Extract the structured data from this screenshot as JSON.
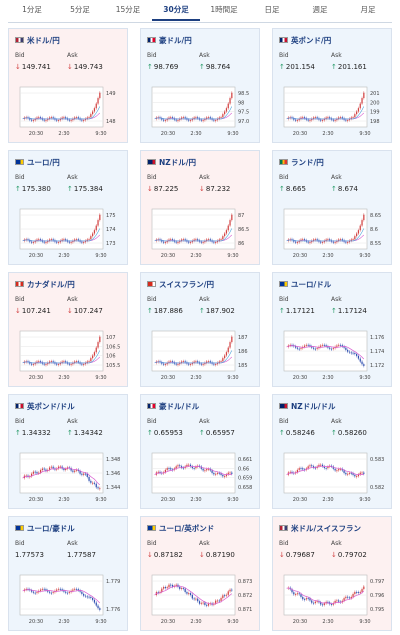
{
  "tabs": [
    {
      "label": "1分足",
      "active": false
    },
    {
      "label": "5分足",
      "active": false
    },
    {
      "label": "15分足",
      "active": false
    },
    {
      "label": "30分足",
      "active": true
    },
    {
      "label": "1時間足",
      "active": false
    },
    {
      "label": "日足",
      "active": false
    },
    {
      "label": "週足",
      "active": false
    },
    {
      "label": "月足",
      "active": false
    }
  ],
  "colors": {
    "up": "#2a9b6b",
    "down": "#d24242",
    "nav": "#1d3f80",
    "line_blue": "#4aa3dc",
    "line_pink": "#d85cd0"
  },
  "cards": [
    {
      "name": "米ドル/円",
      "flag": "US",
      "bid_label": "Bid",
      "ask_label": "Ask",
      "trend": "down",
      "bid": "149.741",
      "ask": "149.743",
      "yticks": [
        "149",
        "148"
      ],
      "xticks": [
        "20:30",
        "2:30",
        "9:30"
      ],
      "shape": "spike-up",
      "chart_type": "candle-spike"
    },
    {
      "name": "豪ドル/円",
      "flag": "AU",
      "bid_label": "Bid",
      "ask_label": "Ask",
      "trend": "up",
      "bid": "98.769",
      "ask": "98.764",
      "yticks": [
        "98.5",
        "98",
        "97.5",
        "97.0"
      ],
      "xticks": [
        "20:30",
        "2:30",
        "9:30"
      ],
      "shape": "spike-up",
      "chart_type": "candle-spike"
    },
    {
      "name": "英ポンド/円",
      "flag": "UK",
      "bid_label": "Bid",
      "ask_label": "Ask",
      "trend": "up",
      "bid": "201.154",
      "ask": "201.161",
      "yticks": [
        "201",
        "200",
        "199",
        "198"
      ],
      "xticks": [
        "20:30",
        "2:30",
        "9:30"
      ],
      "shape": "spike-up",
      "chart_type": "candle-spike"
    },
    {
      "name": "ユーロ/円",
      "flag": "EU",
      "bid_label": "Bid",
      "ask_label": "Ask",
      "trend": "up",
      "bid": "175.380",
      "ask": "175.384",
      "yticks": [
        "175",
        "174",
        "173"
      ],
      "xticks": [
        "20:30",
        "2:30",
        "9:30"
      ],
      "shape": "spike-up",
      "chart_type": "candle-spike"
    },
    {
      "name": "NZドル/円",
      "flag": "NZ",
      "bid_label": "Bid",
      "ask_label": "Ask",
      "trend": "down",
      "bid": "87.225",
      "ask": "87.232",
      "yticks": [
        "87",
        "86.5",
        "86"
      ],
      "xticks": [
        "20:30",
        "2:30",
        "9:30"
      ],
      "shape": "spike-up",
      "chart_type": "candle-spike"
    },
    {
      "name": "ランド/円",
      "flag": "ZA",
      "bid_label": "Bid",
      "ask_label": "Ask",
      "trend": "up",
      "bid": "8.665",
      "ask": "8.674",
      "yticks": [
        "8.65",
        "8.6",
        "8.55"
      ],
      "xticks": [
        "20:30",
        "2:30",
        "9:30"
      ],
      "shape": "spike-up",
      "chart_type": "candle-spike"
    },
    {
      "name": "カナダドル/円",
      "flag": "CA",
      "bid_label": "Bid",
      "ask_label": "Ask",
      "trend": "down",
      "bid": "107.241",
      "ask": "107.247",
      "yticks": [
        "107",
        "106.5",
        "106",
        "105.5"
      ],
      "xticks": [
        "20:30",
        "2:30",
        "9:30"
      ],
      "shape": "spike-up",
      "chart_type": "candle-spike"
    },
    {
      "name": "スイスフラン/円",
      "flag": "CH",
      "bid_label": "Bid",
      "ask_label": "Ask",
      "trend": "up",
      "bid": "187.886",
      "ask": "187.902",
      "yticks": [
        "187",
        "186",
        "185"
      ],
      "xticks": [
        "20:30",
        "2:30",
        "9:30"
      ],
      "shape": "spike-up",
      "chart_type": "candle-spike"
    },
    {
      "name": "ユーロ/ドル",
      "flag": "EU",
      "bid_label": "Bid",
      "ask_label": "Ask",
      "trend": "up",
      "bid": "1.17121",
      "ask": "1.17124",
      "yticks": [
        "1.176",
        "1.174",
        "1.172"
      ],
      "xticks": [
        "20:30",
        "2:30",
        "9:30"
      ],
      "shape": "drift-down",
      "chart_type": "candle-pinkline"
    },
    {
      "name": "英ポンド/ドル",
      "flag": "UK",
      "bid_label": "Bid",
      "ask_label": "Ask",
      "trend": "up",
      "bid": "1.34332",
      "ask": "1.34342",
      "yticks": [
        "1.348",
        "1.346",
        "1.344"
      ],
      "xticks": [
        "20:30",
        "2:30",
        "9:30"
      ],
      "shape": "hump",
      "chart_type": "candle-pinkline"
    },
    {
      "name": "豪ドル/ドル",
      "flag": "AU",
      "bid_label": "Bid",
      "ask_label": "Ask",
      "trend": "up",
      "bid": "0.65953",
      "ask": "0.65957",
      "yticks": [
        "0.661",
        "0.66",
        "0.659",
        "0.658"
      ],
      "xticks": [
        "20:30",
        "2:30",
        "9:30"
      ],
      "shape": "hump-recover",
      "chart_type": "candle-pinkline"
    },
    {
      "name": "NZドル/ドル",
      "flag": "NZ",
      "bid_label": "Bid",
      "ask_label": "Ask",
      "trend": "up",
      "bid": "0.58246",
      "ask": "0.58260",
      "yticks": [
        "0.583",
        "0.582"
      ],
      "xticks": [
        "20:30",
        "2:30",
        "9:30"
      ],
      "shape": "hump-recover",
      "chart_type": "candle-pinkline"
    },
    {
      "name": "ユーロ/豪ドル",
      "flag": "EU",
      "bid_label": "Bid",
      "ask_label": "Ask",
      "trend": "none",
      "bid": "1.77573",
      "ask": "1.77587",
      "yticks": [
        "1.779",
        "1.776"
      ],
      "xticks": [
        "20:30",
        "2:30",
        "9:30"
      ],
      "shape": "drift-down",
      "chart_type": "candle-pinkline"
    },
    {
      "name": "ユーロ/英ポンド",
      "flag": "EU",
      "bid_label": "Bid",
      "ask_label": "Ask",
      "trend": "down",
      "bid": "0.87182",
      "ask": "0.87190",
      "yticks": [
        "0.873",
        "0.872",
        "0.871"
      ],
      "xticks": [
        "20:30",
        "2:30",
        "9:30"
      ],
      "shape": "wave",
      "chart_type": "candle-pinkline"
    },
    {
      "name": "米ドル/スイスフラン",
      "flag": "US",
      "bid_label": "Bid",
      "ask_label": "Ask",
      "trend": "down",
      "bid": "0.79687",
      "ask": "0.79702",
      "yticks": [
        "0.797",
        "0.796",
        "0.795"
      ],
      "xticks": [
        "20:30",
        "2:30",
        "9:30"
      ],
      "shape": "dip-recover",
      "chart_type": "candle-pinkline"
    }
  ]
}
